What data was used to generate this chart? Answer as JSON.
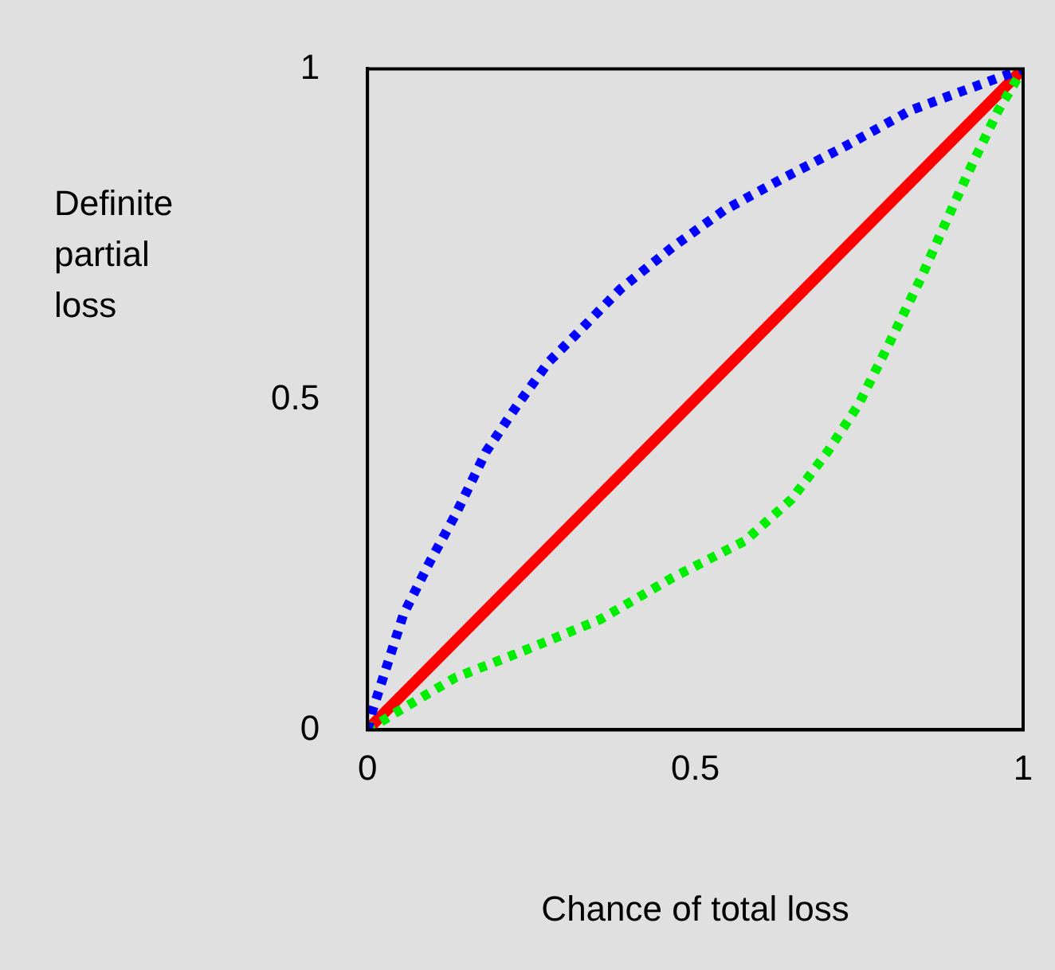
{
  "chart_data": {
    "type": "line",
    "xlabel": "Chance of total loss",
    "ylabel": "Definite partial loss",
    "xlim": [
      0,
      1
    ],
    "ylim": [
      0,
      1
    ],
    "xticks": [
      0,
      0.5,
      1
    ],
    "yticks": [
      0,
      0.5,
      1
    ],
    "grid": false,
    "legend": false,
    "marker": "none",
    "series": [
      {
        "color": "#0000ff",
        "line_style": "dotted",
        "x": [
          0,
          0.008,
          0.055,
          0.095,
          0.134,
          0.181,
          0.229,
          0.276,
          0.323,
          0.386,
          0.465,
          0.544,
          0.631,
          0.733,
          0.828,
          0.923,
          1
        ],
        "values": [
          0,
          0.03,
          0.175,
          0.254,
          0.325,
          0.421,
          0.492,
          0.556,
          0.603,
          0.667,
          0.73,
          0.786,
          0.833,
          0.885,
          0.937,
          0.972,
          1
        ]
      },
      {
        "color": "#00ee00",
        "line_style": "dotted",
        "x": [
          0,
          0.04,
          0.134,
          0.237,
          0.355,
          0.465,
          0.576,
          0.647,
          0.702,
          0.749,
          0.797,
          0.844,
          0.883,
          0.923,
          0.962,
          1
        ],
        "values": [
          0,
          0.024,
          0.079,
          0.119,
          0.167,
          0.23,
          0.286,
          0.349,
          0.421,
          0.492,
          0.587,
          0.683,
          0.77,
          0.857,
          0.937,
          1
        ]
      },
      {
        "color": "#ff0000",
        "line_style": "solid",
        "x": [
          0,
          1
        ],
        "values": [
          0,
          1
        ]
      }
    ]
  }
}
